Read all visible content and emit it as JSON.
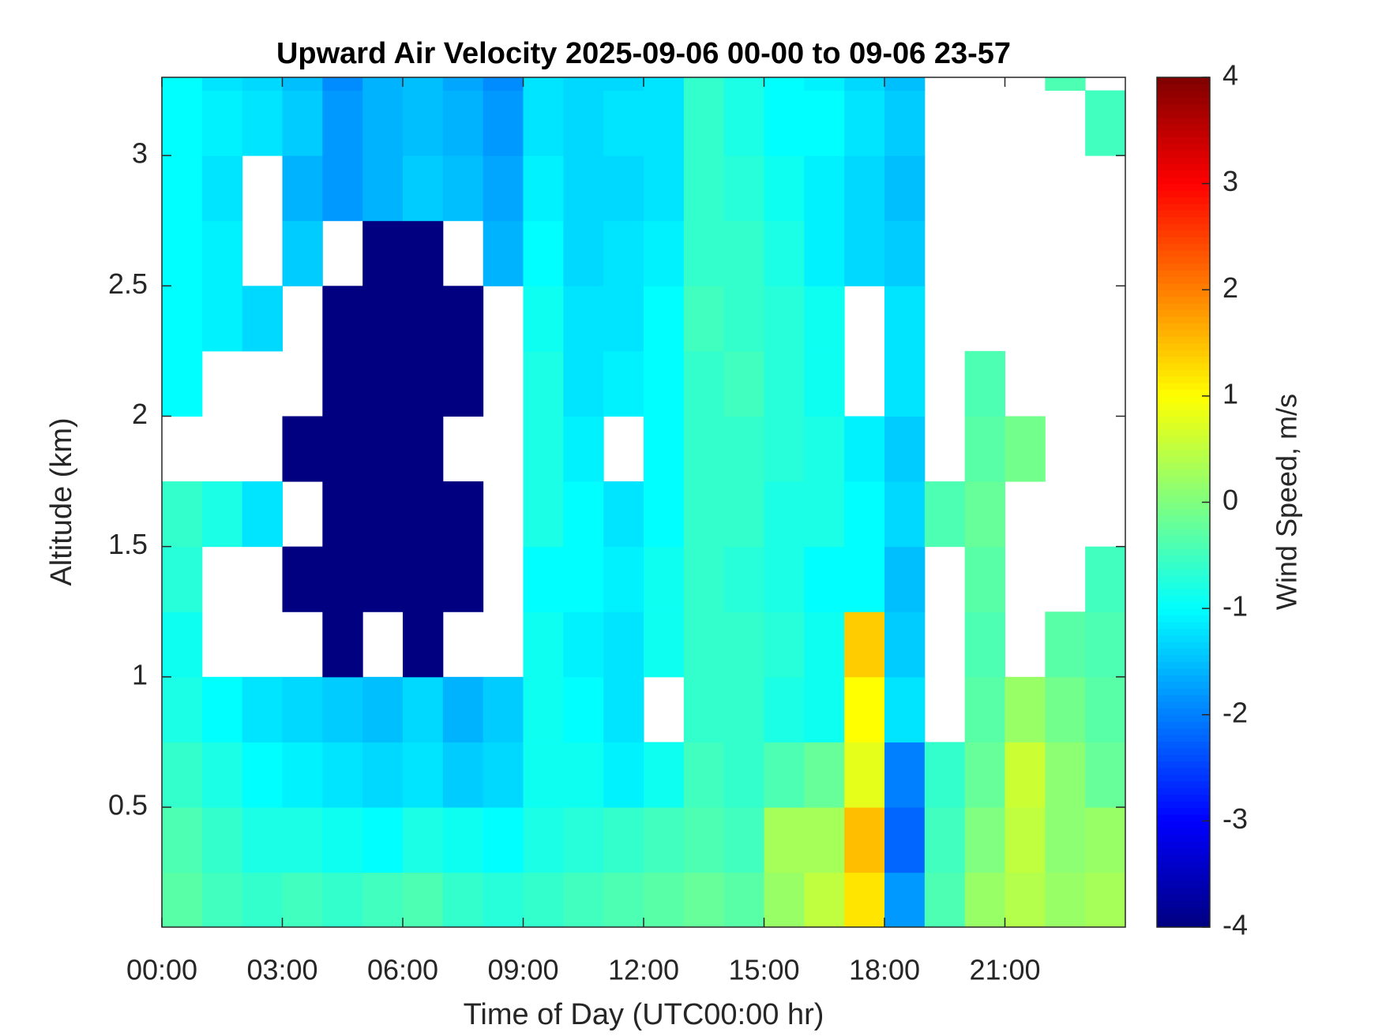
{
  "chart_data": {
    "type": "heatmap",
    "title": "Upward Air Velocity 2025-09-06 00-00 to 09-06 23-57",
    "x_label": "Time of Day (UTC00:00 hr)",
    "y_label": "Altitude (km)",
    "colorbar_label": "Wind Speed, m/s",
    "colormap": "jet",
    "xlim": [
      0,
      24
    ],
    "ylim": [
      0.04,
      3.3
    ],
    "clim": [
      -4,
      4
    ],
    "xticks": [
      {
        "value": 0,
        "label": "00:00"
      },
      {
        "value": 3,
        "label": "03:00"
      },
      {
        "value": 6,
        "label": "06:00"
      },
      {
        "value": 9,
        "label": "09:00"
      },
      {
        "value": 12,
        "label": "12:00"
      },
      {
        "value": 15,
        "label": "15:00"
      },
      {
        "value": 18,
        "label": "18:00"
      },
      {
        "value": 21,
        "label": "21:00"
      }
    ],
    "yticks": [
      0.5,
      1,
      1.5,
      2,
      2.5,
      3
    ],
    "cticks": [
      -4,
      -3,
      -2,
      -1,
      0,
      1,
      2,
      3,
      4
    ],
    "x": [
      0.5,
      1.5,
      2.5,
      3.5,
      4.5,
      5.5,
      6.5,
      7.5,
      8.5,
      9.5,
      10.5,
      11.5,
      12.5,
      13.5,
      14.5,
      15.5,
      16.5,
      17.5,
      18.5,
      19.5,
      20.5,
      21.5,
      22.5,
      23.5
    ],
    "y": [
      0.125,
      0.375,
      0.625,
      0.875,
      1.125,
      1.375,
      1.625,
      1.875,
      2.125,
      2.375,
      2.625,
      2.875,
      3.125,
      3.375
    ],
    "z": [
      [
        -0.3,
        -0.5,
        -0.6,
        -0.5,
        -0.6,
        -0.5,
        -0.4,
        -0.6,
        -0.7,
        -0.6,
        -0.5,
        -0.4,
        -0.3,
        -0.2,
        -0.3,
        0.2,
        0.5,
        1.2,
        -1.8,
        -0.4,
        0.2,
        0.4,
        0.2,
        0.3
      ],
      [
        -0.4,
        -0.6,
        -0.8,
        -0.8,
        -0.9,
        -1.0,
        -0.8,
        -0.9,
        -1.0,
        -0.8,
        -0.7,
        -0.6,
        -0.5,
        -0.4,
        -0.5,
        0.3,
        0.3,
        1.5,
        -2.2,
        -0.5,
        0,
        0.5,
        0.1,
        0.2
      ],
      [
        -0.6,
        -0.8,
        -1.0,
        -1.1,
        -1.2,
        -1.3,
        -1.2,
        -1.4,
        -1.3,
        -0.9,
        -0.9,
        -1.1,
        -0.9,
        -0.5,
        -0.6,
        -0.4,
        -0.2,
        0.8,
        -2.0,
        -0.6,
        -0.2,
        0.6,
        0.1,
        -0.2
      ],
      [
        -0.8,
        -1.0,
        -1.2,
        -1.3,
        -1.4,
        -1.5,
        -1.3,
        -1.6,
        -1.4,
        -0.9,
        -1.0,
        -1.2,
        null,
        -0.6,
        -0.6,
        -0.8,
        -0.9,
        1.0,
        -1.2,
        null,
        -0.3,
        0.2,
        -0.1,
        -0.3
      ],
      [
        -0.9,
        null,
        null,
        null,
        -4,
        null,
        -4,
        null,
        null,
        -0.9,
        -1.1,
        -1.2,
        -0.9,
        -0.6,
        -0.6,
        -0.7,
        -0.9,
        1.4,
        -1.4,
        null,
        -0.4,
        null,
        -0.3,
        -0.4
      ],
      [
        -0.7,
        null,
        null,
        -4,
        -4,
        -4,
        -4,
        -4,
        null,
        -1.0,
        -1.0,
        -1.1,
        -0.9,
        -0.6,
        -0.7,
        -0.8,
        -1.0,
        -1.0,
        -1.5,
        null,
        -0.3,
        null,
        null,
        -0.5
      ],
      [
        -0.6,
        -0.8,
        -1.2,
        null,
        -4,
        -4,
        -4,
        -4,
        null,
        -0.8,
        -1.0,
        -1.2,
        -1.0,
        -0.6,
        -0.6,
        -0.8,
        -0.8,
        -1.0,
        -1.3,
        -0.4,
        -0.2,
        null,
        null,
        null
      ],
      [
        null,
        null,
        null,
        -4,
        -4,
        -4,
        -4,
        null,
        null,
        -0.8,
        -1.1,
        null,
        -1.0,
        -0.6,
        -0.6,
        -0.7,
        -0.8,
        -1.1,
        -1.4,
        null,
        -0.3,
        -0.1,
        null,
        null
      ],
      [
        -1.0,
        null,
        null,
        null,
        -4,
        -4,
        -4,
        -4,
        null,
        -0.8,
        -1.2,
        -1.1,
        -1.0,
        -0.6,
        -0.5,
        -0.7,
        -0.9,
        null,
        -1.2,
        null,
        -0.4,
        null,
        null,
        null
      ],
      [
        -1.0,
        -1.1,
        -1.3,
        null,
        -4,
        -4,
        -4,
        -4,
        null,
        -0.9,
        -1.2,
        -1.2,
        -1.0,
        -0.5,
        -0.6,
        -0.7,
        -0.9,
        null,
        -1.2,
        null,
        null,
        null,
        null,
        null
      ],
      [
        -1.0,
        -1.1,
        null,
        -1.4,
        null,
        -4,
        -4,
        null,
        -1.6,
        -1.0,
        -1.3,
        -1.2,
        -1.1,
        -0.6,
        -0.6,
        -0.8,
        -1.1,
        -1.3,
        -1.4,
        null,
        null,
        null,
        null,
        null
      ],
      [
        -1.0,
        -1.2,
        null,
        -1.6,
        -1.8,
        -1.6,
        -1.4,
        -1.5,
        -1.7,
        -1.1,
        -1.3,
        -1.3,
        -1.2,
        -0.6,
        -0.7,
        -0.9,
        -1.1,
        -1.3,
        -1.5,
        null,
        null,
        null,
        null,
        null
      ],
      [
        -1.0,
        -1.1,
        -1.2,
        -1.4,
        -1.8,
        -1.6,
        -1.5,
        -1.6,
        -1.8,
        -1.2,
        -1.3,
        -1.2,
        -1.2,
        -0.6,
        -0.8,
        -1.0,
        -1.0,
        -1.2,
        -1.4,
        null,
        null,
        null,
        null,
        -0.5
      ],
      [
        -1.0,
        -1.2,
        -1.3,
        -1.5,
        -1.9,
        -1.6,
        -1.5,
        -1.7,
        -1.9,
        -1.2,
        -1.3,
        -1.3,
        -1.2,
        -0.6,
        -0.8,
        -1.0,
        -1.1,
        -1.3,
        -1.5,
        null,
        null,
        null,
        -0.4,
        null
      ]
    ]
  }
}
